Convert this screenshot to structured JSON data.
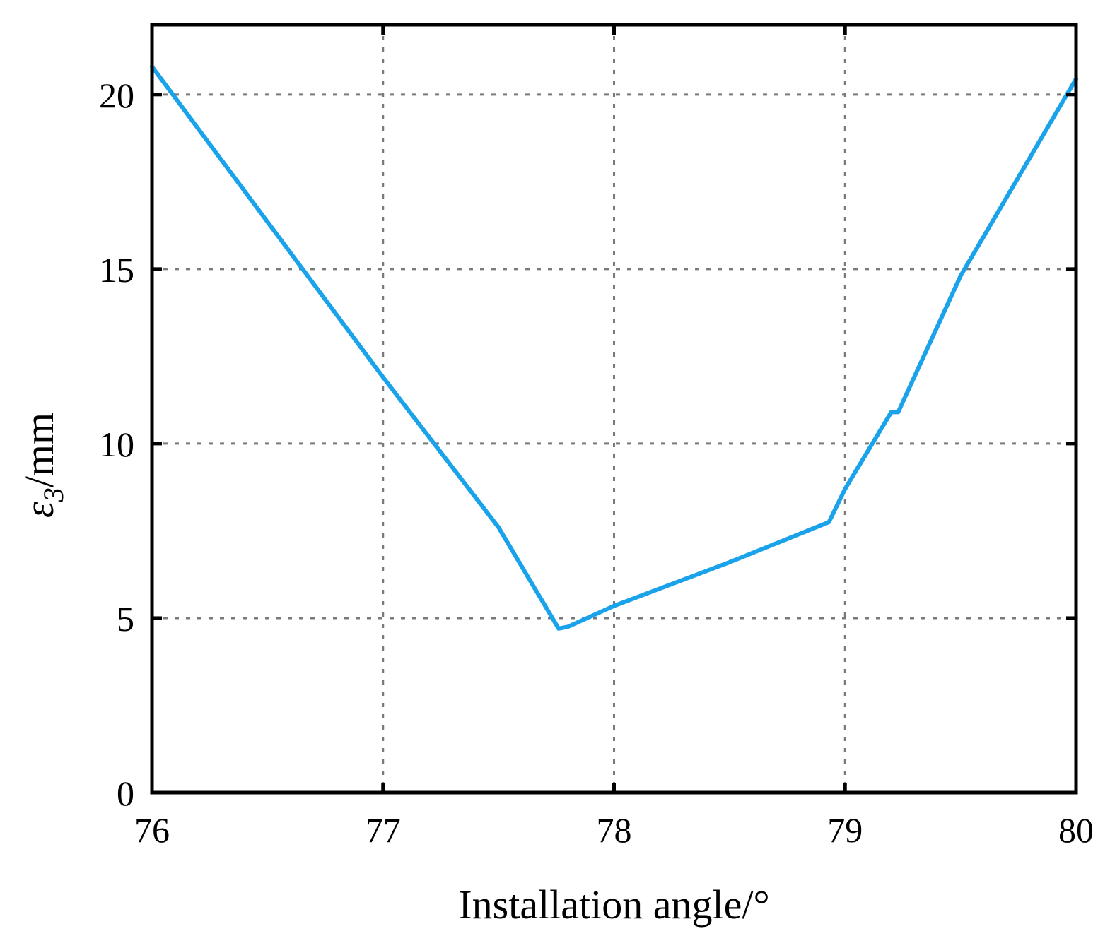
{
  "chart_data": {
    "type": "line",
    "title": "",
    "xlabel": "Installation angle/°",
    "ylabel": {
      "symbol": "ε",
      "subscript": "3",
      "unit": "/mm"
    },
    "xlim": [
      76,
      80
    ],
    "ylim": [
      0,
      22
    ],
    "x_ticks": [
      "76",
      "77",
      "78",
      "79",
      "80"
    ],
    "y_ticks": [
      "0",
      "5",
      "10",
      "15",
      "20"
    ],
    "grid": true,
    "line_color": "#1aa3ea",
    "series": [
      {
        "points": [
          [
            76.0,
            20.8
          ],
          [
            77.0,
            11.9
          ],
          [
            77.5,
            7.6
          ],
          [
            77.76,
            4.7
          ],
          [
            77.8,
            4.75
          ],
          [
            78.0,
            5.35
          ],
          [
            78.5,
            6.6
          ],
          [
            78.93,
            7.75
          ],
          [
            79.0,
            8.7
          ],
          [
            79.2,
            10.9
          ],
          [
            79.23,
            10.9
          ],
          [
            79.5,
            14.8
          ],
          [
            80.0,
            20.45
          ]
        ]
      }
    ]
  }
}
